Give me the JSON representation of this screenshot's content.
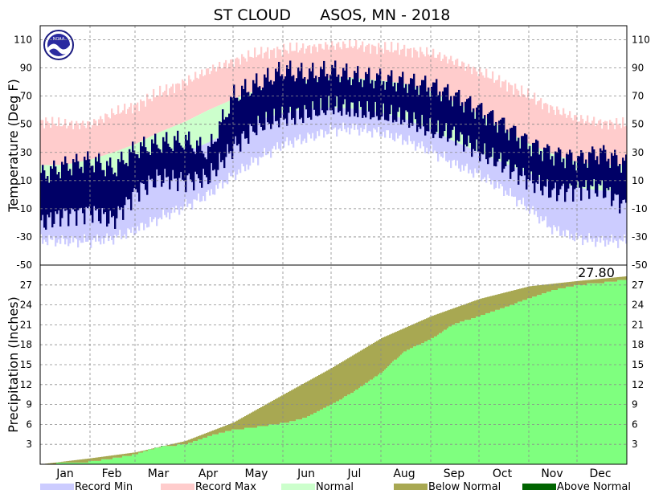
{
  "chart_data": [
    {
      "type": "bar",
      "panel": "temperature",
      "title": "ST CLOUD      ASOS, MN - 2018",
      "ylabel": "Temperature (Deg F)",
      "ylim": [
        -50,
        120
      ],
      "yticks": [
        110,
        90,
        70,
        50,
        30,
        10,
        -10,
        -30,
        -50
      ],
      "months": [
        "Jan",
        "Feb",
        "Mar",
        "Apr",
        "May",
        "Jun",
        "Jul",
        "Aug",
        "Sep",
        "Oct",
        "Nov",
        "Dec"
      ],
      "month_centers_doy": [
        16,
        45,
        74,
        105,
        135,
        166,
        196,
        227,
        258,
        288,
        319,
        349
      ],
      "grid": true,
      "series": [
        {
          "name": "Record Min",
          "color": "#ccccff",
          "doy": [
            1,
            15,
            32,
            46,
            60,
            74,
            91,
            105,
            121,
            135,
            152,
            166,
            182,
            196,
            213,
            227,
            244,
            258,
            274,
            288,
            305,
            319,
            335,
            349,
            365
          ],
          "values": [
            -32,
            -33,
            -33,
            -31,
            -25,
            -17,
            -8,
            0,
            14,
            25,
            36,
            40,
            46,
            47,
            44,
            39,
            31,
            22,
            14,
            4,
            -10,
            -24,
            -31,
            -33,
            -33
          ]
        },
        {
          "name": "Record Max",
          "color": "#ffcccc",
          "doy": [
            1,
            15,
            32,
            46,
            60,
            74,
            91,
            105,
            121,
            135,
            152,
            166,
            182,
            196,
            213,
            227,
            244,
            258,
            274,
            288,
            305,
            319,
            335,
            349,
            365
          ],
          "values": [
            52,
            50,
            50,
            58,
            63,
            72,
            80,
            88,
            95,
            100,
            103,
            104,
            106,
            106,
            104,
            103,
            100,
            95,
            87,
            80,
            70,
            61,
            54,
            51,
            50
          ]
        },
        {
          "name": "Normal",
          "color": "#ccffcc",
          "doy": [
            1,
            15,
            32,
            46,
            60,
            74,
            91,
            105,
            121,
            135,
            152,
            166,
            182,
            196,
            213,
            227,
            244,
            258,
            274,
            288,
            305,
            319,
            335,
            349,
            365
          ],
          "normal_high": [
            21,
            21,
            25,
            30,
            36,
            44,
            52,
            60,
            68,
            74,
            79,
            81,
            83,
            83,
            81,
            79,
            73,
            66,
            57,
            47,
            36,
            29,
            23,
            21,
            21
          ],
          "normal_low": [
            2,
            2,
            5,
            10,
            16,
            24,
            30,
            37,
            46,
            53,
            58,
            61,
            62,
            61,
            58,
            54,
            46,
            38,
            30,
            23,
            15,
            9,
            5,
            3,
            2
          ]
        },
        {
          "name": "Observed",
          "color": "#000066",
          "doy": [
            1,
            15,
            32,
            46,
            60,
            74,
            91,
            105,
            121,
            135,
            152,
            166,
            182,
            196,
            213,
            227,
            244,
            258,
            274,
            288,
            305,
            319,
            335,
            349,
            365
          ],
          "high": [
            14,
            20,
            24,
            18,
            32,
            36,
            38,
            30,
            70,
            78,
            88,
            85,
            88,
            84,
            82,
            80,
            77,
            70,
            60,
            50,
            36,
            29,
            25,
            30,
            22
          ],
          "low": [
            -20,
            -14,
            -12,
            -18,
            2,
            12,
            10,
            12,
            34,
            48,
            55,
            57,
            62,
            60,
            56,
            55,
            45,
            42,
            30,
            22,
            10,
            2,
            4,
            5,
            -8
          ]
        }
      ]
    },
    {
      "type": "area",
      "panel": "precipitation",
      "ylabel": "Precipitation (Inches)",
      "ylim": [
        0,
        30
      ],
      "yticks": [
        27,
        24,
        21,
        18,
        15,
        12,
        9,
        6,
        3
      ],
      "total_label": "27.80",
      "grid": true,
      "series": [
        {
          "name": "Normal",
          "color": "#7fff7f",
          "doy": [
            1,
            32,
            60,
            91,
            121,
            152,
            182,
            213,
            244,
            274,
            305,
            335,
            365
          ],
          "values": [
            0,
            0.9,
            1.8,
            3.5,
            6.3,
            10.5,
            14.5,
            19.0,
            22.3,
            24.9,
            26.8,
            27.6,
            28.3
          ]
        },
        {
          "name": "Observed",
          "color": "#2e8b2e",
          "doy": [
            1,
            32,
            46,
            60,
            74,
            91,
            105,
            121,
            135,
            152,
            166,
            182,
            196,
            213,
            227,
            244,
            258,
            274,
            288,
            305,
            319,
            335,
            349,
            365
          ],
          "values": [
            0,
            0.4,
            0.9,
            1.5,
            2.6,
            3.0,
            4.2,
            5.2,
            5.6,
            6.2,
            7.0,
            9.0,
            11.0,
            13.8,
            17.0,
            18.9,
            21.1,
            22.3,
            23.5,
            25.0,
            26.2,
            27.0,
            27.3,
            27.8
          ]
        }
      ],
      "legend": [
        "Record Min",
        "Record Max",
        "Normal",
        "Below Normal",
        "Above Normal"
      ],
      "legend_colors": [
        "#ccccff",
        "#ffcccc",
        "#ccffcc",
        "#a8a852",
        "#006400"
      ],
      "legend_position": "bottom"
    }
  ]
}
